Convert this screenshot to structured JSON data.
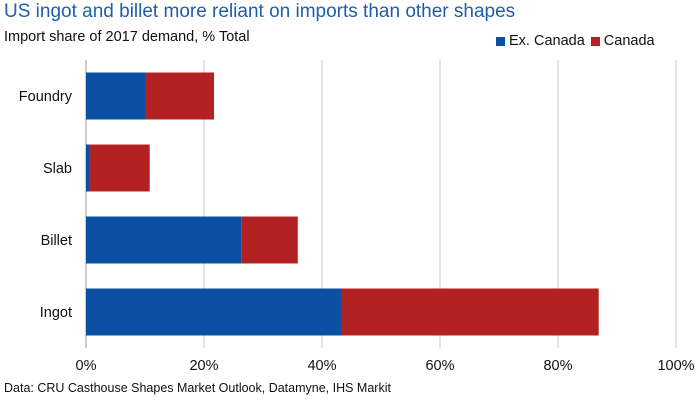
{
  "chart_data": {
    "type": "bar",
    "orientation": "horizontal",
    "stacked": true,
    "title": "US ingot and billet more reliant on imports than other shapes",
    "subtitle": "Import share of 2017 demand, % Total",
    "categories": [
      "Foundry",
      "Slab",
      "Billet",
      "Ingot"
    ],
    "series": [
      {
        "name": "Ex. Canada",
        "color": "#0b4fa3",
        "values": [
          10,
          0.6,
          26.3,
          43.3
        ]
      },
      {
        "name": "Canada",
        "color": "#b22222",
        "values": [
          11.7,
          10.2,
          9.6,
          43.6
        ]
      }
    ],
    "xlim": [
      0,
      100
    ],
    "xticks": [
      "0%",
      "20%",
      "40%",
      "60%",
      "80%",
      "100%"
    ],
    "grid": true,
    "legend_position": "top-right",
    "source": "Data: CRU Casthouse Shapes Market Outlook, Datamyne, IHS Markit"
  }
}
